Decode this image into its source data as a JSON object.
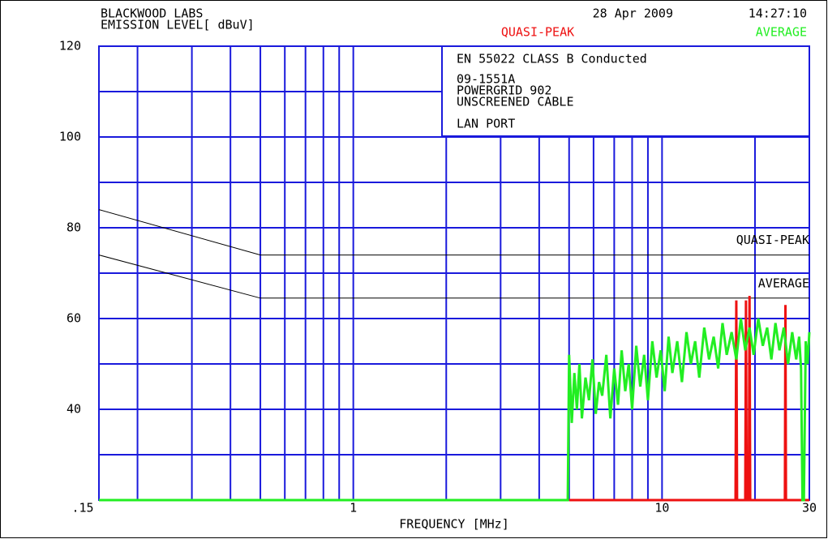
{
  "chart_data": {
    "type": "line",
    "header_left": [
      "BLACKWOOD LABS",
      "EMISSION LEVEL[ dBuV]"
    ],
    "date": "28 Apr 2009",
    "time": "14:27:10",
    "info": [
      "EN 55022 CLASS B Conducted",
      "09-1551A",
      "POWERGRID 902",
      "UNSCREENED CABLE",
      "LAN PORT"
    ],
    "x_label": "FREQUENCY [MHz]",
    "log_x": true,
    "xlim": [
      0.15,
      30
    ],
    "xticks": [
      {
        "value": 0.15,
        "label": ".15"
      },
      1,
      10,
      30
    ],
    "xgrid": [
      0.2,
      0.3,
      0.4,
      0.5,
      0.6,
      0.7,
      0.8,
      0.9,
      2,
      3,
      4,
      5,
      6,
      7,
      8,
      9,
      20
    ],
    "ylim": [
      20,
      120
    ],
    "yticks": [
      40,
      60,
      80,
      100,
      120
    ],
    "ygrid": [
      30,
      50,
      70,
      90,
      110
    ],
    "grid_color": "#1a1adc",
    "limits": [
      {
        "name": "QUASI-PEAK",
        "color": "#000000",
        "x": [
          0.15,
          0.5,
          30
        ],
        "values": [
          84,
          74,
          74
        ]
      },
      {
        "name": "AVERAGE",
        "color": "#000000",
        "x": [
          0.15,
          0.5,
          30
        ],
        "values": [
          74,
          64.5,
          64.5
        ]
      }
    ],
    "series": [
      {
        "name": "QUASI-PEAK",
        "color": "#ee1111",
        "x": [
          5,
          17.3,
          17.4,
          17.5,
          18.6,
          18.7,
          18.8,
          19.1,
          19.2,
          19.3,
          25.0,
          25.1,
          25.2,
          30
        ],
        "values": [
          20,
          20,
          64,
          20,
          20,
          64,
          20,
          20,
          65,
          20,
          20,
          63,
          20,
          20
        ]
      },
      {
        "name": "AVERAGE",
        "color": "#22ee22",
        "x": [
          0.15,
          4.95,
          5.0,
          5.1,
          5.2,
          5.3,
          5.4,
          5.5,
          5.65,
          5.8,
          5.95,
          6.1,
          6.25,
          6.4,
          6.6,
          6.8,
          7.0,
          7.2,
          7.4,
          7.6,
          7.8,
          8.0,
          8.25,
          8.5,
          8.75,
          9.0,
          9.3,
          9.6,
          9.9,
          10.2,
          10.5,
          10.8,
          11.2,
          11.6,
          12.0,
          12.4,
          12.8,
          13.2,
          13.7,
          14.2,
          14.7,
          15.2,
          15.7,
          16.2,
          16.8,
          17.4,
          18.0,
          18.6,
          19.2,
          19.8,
          20.5,
          21.2,
          21.9,
          22.6,
          23.3,
          24.0,
          24.8,
          25.6,
          26.4,
          27.2,
          27.8,
          28.2,
          28.5,
          28.8,
          29.2,
          29.6,
          30
        ],
        "values": [
          20,
          20,
          52,
          37,
          48,
          40,
          50,
          38,
          47,
          42,
          51,
          39,
          46,
          43,
          52,
          38,
          49,
          41,
          53,
          44,
          50,
          40,
          54,
          45,
          52,
          42,
          55,
          47,
          53,
          44,
          56,
          48,
          55,
          46,
          57,
          50,
          55,
          47,
          58,
          51,
          56,
          49,
          59,
          52,
          57,
          51,
          60,
          53,
          58,
          52,
          60,
          54,
          58,
          51,
          59,
          53,
          58,
          50,
          57,
          51,
          56,
          49,
          20,
          20,
          55,
          50,
          57
        ]
      }
    ]
  }
}
